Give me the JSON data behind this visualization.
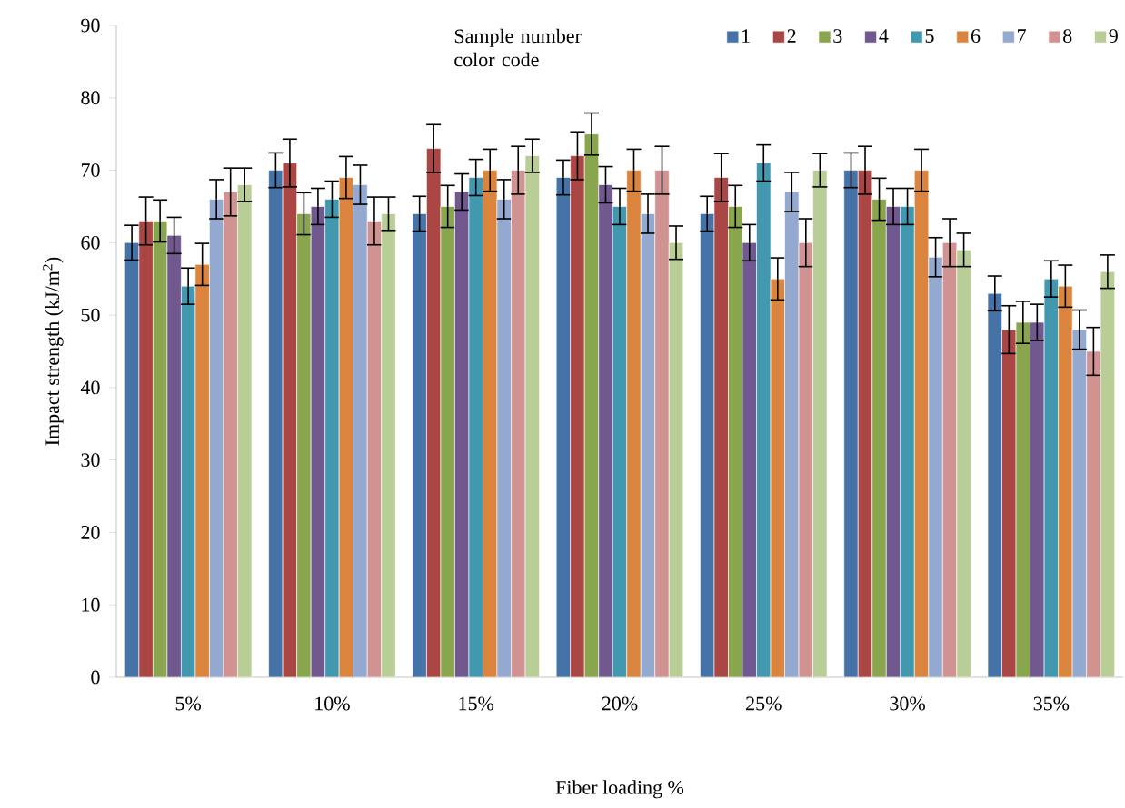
{
  "chart_data": {
    "type": "bar",
    "xlabel": "Fiber loading %",
    "ylabel": "Impact strength (kJ/m$^{2}$)",
    "legend_title": "Sample number color code",
    "categories": [
      "5%",
      "10%",
      "15%",
      "20%",
      "25%",
      "30%",
      "35%"
    ],
    "series": [
      {
        "name": "1",
        "color": "#4572a7",
        "values": [
          60,
          70,
          64,
          69,
          64,
          70,
          53
        ],
        "errors": [
          2.4,
          2.4,
          2.4,
          2.4,
          2.4,
          2.4,
          2.4
        ]
      },
      {
        "name": "2",
        "color": "#aa4643",
        "values": [
          63,
          71,
          73,
          72,
          69,
          70,
          48
        ],
        "errors": [
          3.3,
          3.3,
          3.3,
          3.3,
          3.3,
          3.3,
          3.3
        ]
      },
      {
        "name": "3",
        "color": "#89a54e",
        "values": [
          63,
          64,
          65,
          75,
          65,
          66,
          49
        ],
        "errors": [
          2.9,
          2.9,
          2.9,
          2.9,
          2.9,
          2.9,
          2.9
        ]
      },
      {
        "name": "4",
        "color": "#71588f",
        "values": [
          61,
          65,
          67,
          68,
          60,
          65,
          49
        ],
        "errors": [
          2.5,
          2.5,
          2.5,
          2.5,
          2.5,
          2.5,
          2.5
        ]
      },
      {
        "name": "5",
        "color": "#4198af",
        "values": [
          54,
          66,
          69,
          65,
          71,
          65,
          55
        ],
        "errors": [
          2.5,
          2.5,
          2.5,
          2.5,
          2.5,
          2.5,
          2.5
        ]
      },
      {
        "name": "6",
        "color": "#db843d",
        "values": [
          57,
          69,
          70,
          70,
          55,
          70,
          54
        ],
        "errors": [
          2.9,
          2.9,
          2.9,
          2.9,
          2.9,
          2.9,
          2.9
        ]
      },
      {
        "name": "7",
        "color": "#93a9cf",
        "values": [
          66,
          68,
          66,
          64,
          67,
          58,
          48
        ],
        "errors": [
          2.7,
          2.7,
          2.7,
          2.7,
          2.7,
          2.7,
          2.7
        ]
      },
      {
        "name": "8",
        "color": "#d19392",
        "values": [
          67,
          63,
          70,
          70,
          60,
          60,
          45
        ],
        "errors": [
          3.3,
          3.3,
          3.3,
          3.3,
          3.3,
          3.3,
          3.3
        ]
      },
      {
        "name": "9",
        "color": "#b9cd96",
        "values": [
          68,
          64,
          72,
          60,
          70,
          59,
          56
        ],
        "errors": [
          2.3,
          2.3,
          2.3,
          2.3,
          2.3,
          2.3,
          2.3
        ]
      }
    ],
    "ylim": [
      0,
      90
    ],
    "yticks": [
      0,
      10,
      20,
      30,
      40,
      50,
      60,
      70,
      80,
      90
    ],
    "legend": "top right",
    "grid": false
  }
}
